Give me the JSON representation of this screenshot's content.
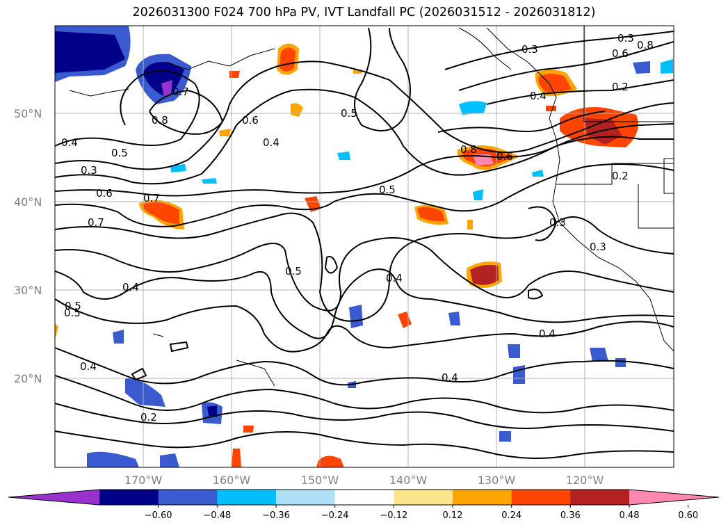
{
  "title": "2026031300 F024 700 hPa PV, IVT Landfall PC (2026031512 - 2026031812)",
  "map": {
    "lat_labels": [
      "50°N",
      "40°N",
      "30°N",
      "20°N"
    ],
    "lon_labels": [
      "170°W",
      "160°W",
      "150°W",
      "140°W",
      "130°W",
      "120°W"
    ],
    "contour_labels": [
      "0.7",
      "0.8",
      "0.6",
      "0.4",
      "0.5",
      "0.3",
      "0.4",
      "0.3",
      "0.6",
      "0.7",
      "0.5",
      "0.7",
      "0.8",
      "0.6",
      "0.4",
      "0.3",
      "0.8",
      "0.6",
      "0.2",
      "0.2",
      "0.3",
      "0.3",
      "0.4",
      "0.5",
      "0.4",
      "0.4",
      "0.4",
      "0.5",
      "0.4",
      "0.2"
    ]
  },
  "colorbar": {
    "ticks": [
      "−0.60",
      "−0.48",
      "−0.36",
      "−0.24",
      "−0.12",
      "0.12",
      "0.24",
      "0.36",
      "0.48",
      "0.60"
    ],
    "colors": [
      "#9932cc",
      "#00008b",
      "#3a5bd0",
      "#00bfff",
      "#b0e0f8",
      "#ffffff",
      "#fde68a",
      "#ffa500",
      "#ff4500",
      "#b22222",
      "#ff88b0"
    ]
  }
}
